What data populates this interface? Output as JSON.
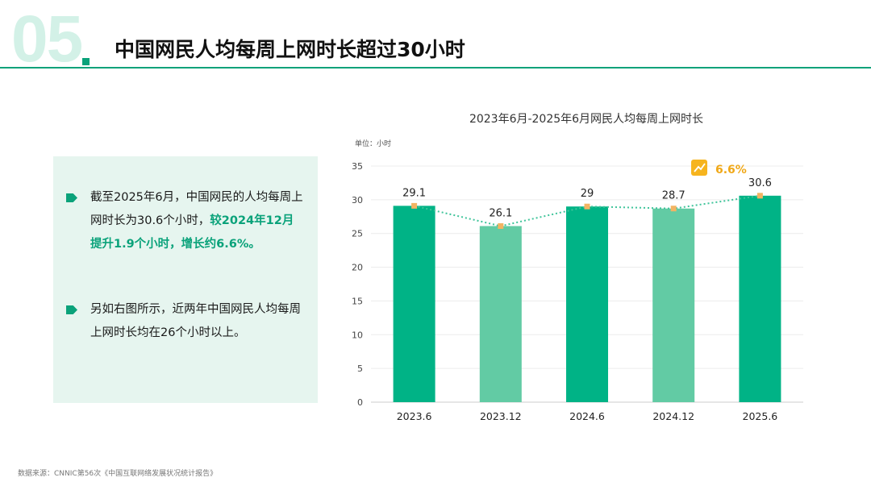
{
  "header": {
    "section_number": "05",
    "title": "中国网民人均每周上网时长超过30小时"
  },
  "panel": {
    "bullet1_pre": "截至2025年6月，中国网民的人均每周上网时长为30.6个小时，",
    "bullet1_highlight": "较2024年12月提升1.9个小时，增长约6.6%。",
    "bullet2": "另如右图所示，近两年中国网民人均每周上网时长均在26个小时以上。"
  },
  "footer": {
    "source": "数据来源：CNNIC第56次《中国互联网络发展状况统计报告》"
  },
  "colors": {
    "primary": "#00b386",
    "light": "#62cba4",
    "line": "#3fc49a",
    "marker": "#f3b463",
    "accent": "#f0a818"
  },
  "chart_data": {
    "type": "bar",
    "title": "2023年6月-2025年6月网民人均每周上网时长",
    "unit_label": "单位：小时",
    "categories": [
      "2023.6",
      "2023.12",
      "2024.6",
      "2024.12",
      "2025.6"
    ],
    "values": [
      29.1,
      26.1,
      29,
      28.7,
      30.6
    ],
    "value_labels": [
      "29.1",
      "26.1",
      "29",
      "28.7",
      "30.6"
    ],
    "bar_styles": [
      "dark",
      "light",
      "dark",
      "light",
      "dark"
    ],
    "ylim": [
      0,
      35
    ],
    "yticks": [
      0,
      5,
      10,
      15,
      20,
      25,
      30,
      35
    ],
    "trend_line": true,
    "growth_badge": {
      "text": "6.6%",
      "icon": "trend-up-icon"
    }
  }
}
